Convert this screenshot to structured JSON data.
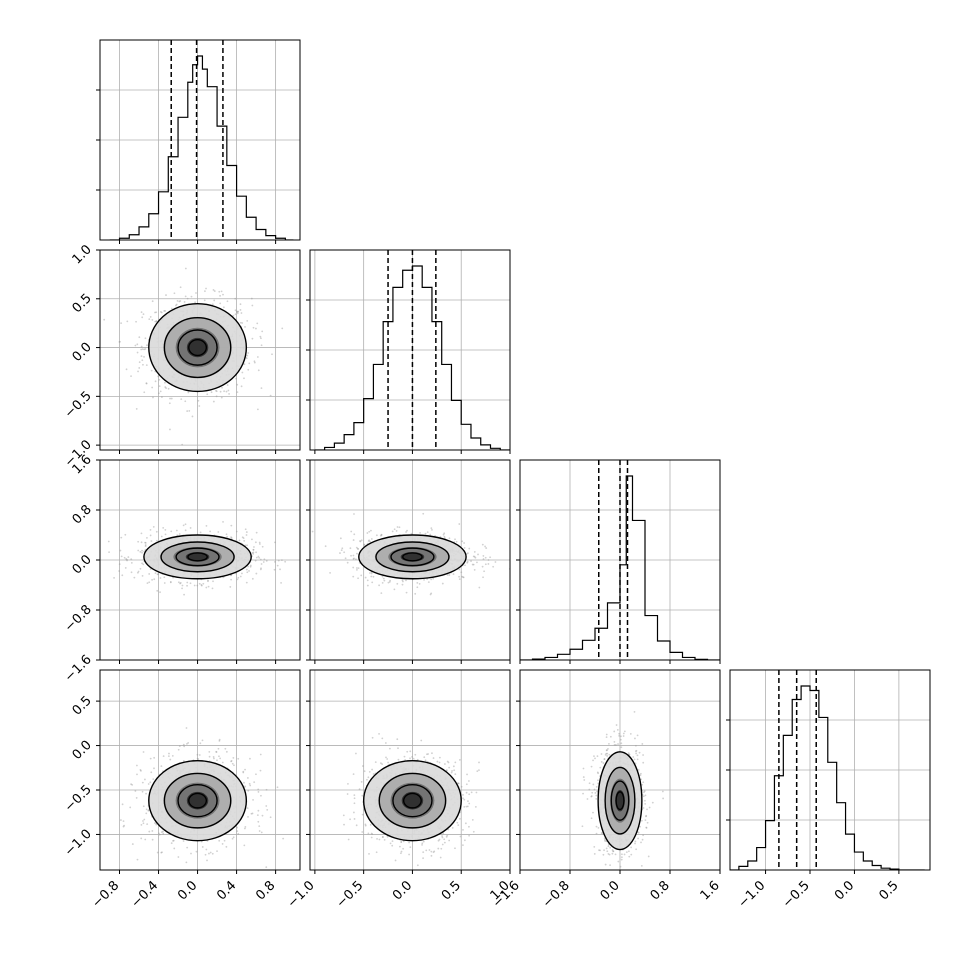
{
  "chart_data": {
    "type": "corner",
    "title": "",
    "n_params": 4,
    "param_labels": [
      "",
      "",
      "",
      ""
    ],
    "ranges": [
      [
        -1.0,
        1.05
      ],
      [
        -1.05,
        1.0
      ],
      [
        -1.6,
        1.6
      ],
      [
        -1.4,
        0.85
      ]
    ],
    "ticks": [
      [
        -0.8,
        -0.4,
        0.0,
        0.4,
        0.8
      ],
      [
        -1.0,
        -0.5,
        0.0,
        0.5,
        1.0
      ],
      [
        -1.6,
        -0.8,
        0.0,
        0.8,
        1.6
      ],
      [
        -1.0,
        -0.5,
        0.0,
        0.5
      ]
    ],
    "tick_labels": [
      [
        "−0.8",
        "−0.4",
        "0.0",
        "0.4",
        "0.8"
      ],
      [
        "−1.0",
        "−0.5",
        "0.0",
        "0.5",
        "1.0"
      ],
      [
        "−1.6",
        "−0.8",
        "0.0",
        "0.8",
        "1.6"
      ],
      [
        "−1.0",
        "−0.5",
        "0.0",
        "0.5"
      ]
    ],
    "quantiles": [
      [
        -0.27,
        -0.01,
        0.26
      ],
      [
        -0.25,
        0.0,
        0.24
      ],
      [
        -0.34,
        0.0,
        0.12
      ],
      [
        -0.85,
        -0.65,
        -0.43
      ]
    ],
    "histograms": [
      {
        "x": [
          -0.9,
          -0.8,
          -0.7,
          -0.6,
          -0.5,
          -0.4,
          -0.3,
          -0.2,
          -0.1,
          -0.05,
          0.0,
          0.05,
          0.1,
          0.2,
          0.3,
          0.4,
          0.5,
          0.6,
          0.7,
          0.8,
          0.9
        ],
        "counts": [
          0,
          2,
          6,
          15,
          30,
          55,
          95,
          140,
          180,
          200,
          210,
          195,
          175,
          130,
          85,
          50,
          26,
          12,
          5,
          2,
          0
        ]
      },
      {
        "x": [
          -1.0,
          -0.9,
          -0.8,
          -0.7,
          -0.6,
          -0.5,
          -0.4,
          -0.3,
          -0.2,
          -0.1,
          0.0,
          0.1,
          0.2,
          0.3,
          0.4,
          0.5,
          0.6,
          0.7,
          0.8,
          0.9,
          1.0
        ],
        "counts": [
          0,
          3,
          8,
          18,
          32,
          60,
          100,
          150,
          190,
          210,
          215,
          190,
          150,
          100,
          58,
          30,
          14,
          6,
          2,
          0,
          0
        ]
      },
      {
        "x": [
          -1.6,
          -1.4,
          -1.2,
          -1.0,
          -0.8,
          -0.6,
          -0.4,
          -0.2,
          0.0,
          0.1,
          0.2,
          0.4,
          0.6,
          0.8,
          1.0,
          1.2,
          1.4,
          1.6
        ],
        "counts": [
          0,
          3,
          8,
          18,
          34,
          62,
          100,
          180,
          300,
          580,
          440,
          140,
          60,
          24,
          8,
          2,
          0,
          0
        ]
      },
      {
        "x": [
          -1.4,
          -1.3,
          -1.2,
          -1.1,
          -1.0,
          -0.9,
          -0.8,
          -0.7,
          -0.6,
          -0.5,
          -0.4,
          -0.3,
          -0.2,
          -0.1,
          0.0,
          0.1,
          0.2,
          0.3,
          0.4,
          0.5,
          0.6,
          0.7
        ],
        "counts": [
          0,
          4,
          10,
          25,
          55,
          105,
          150,
          190,
          205,
          200,
          170,
          120,
          75,
          40,
          20,
          10,
          5,
          2,
          1,
          0,
          0,
          0
        ]
      }
    ],
    "pairs": [
      {
        "row": 1,
        "col": 0,
        "center": [
          0.0,
          0.0
        ],
        "radii": [
          0.5,
          0.45
        ],
        "tilt": 0
      },
      {
        "row": 2,
        "col": 0,
        "center": [
          0.0,
          0.05
        ],
        "radii": [
          0.55,
          0.35
        ],
        "tilt": 0
      },
      {
        "row": 2,
        "col": 1,
        "center": [
          0.0,
          0.05
        ],
        "radii": [
          0.55,
          0.35
        ],
        "tilt": 0
      },
      {
        "row": 3,
        "col": 0,
        "center": [
          0.0,
          -0.62
        ],
        "radii": [
          0.5,
          0.45
        ],
        "tilt": 0
      },
      {
        "row": 3,
        "col": 1,
        "center": [
          0.0,
          -0.62
        ],
        "radii": [
          0.5,
          0.45
        ],
        "tilt": 0
      },
      {
        "row": 3,
        "col": 2,
        "center": [
          0.0,
          -0.62
        ],
        "radii": [
          0.35,
          0.55
        ],
        "tilt": 0
      }
    ],
    "grid": true,
    "legend": "none"
  }
}
